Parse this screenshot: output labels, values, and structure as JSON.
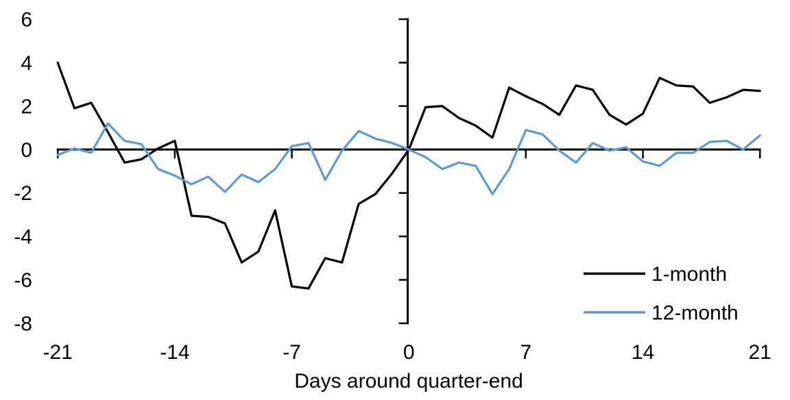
{
  "chart_data": {
    "type": "line",
    "title": "",
    "xlabel": "Days around quarter-end",
    "ylabel": "",
    "xlim": [
      -21,
      21
    ],
    "ylim": [
      -8,
      6
    ],
    "grid": false,
    "legend_position": "bottom-right",
    "x_ticks": [
      -21,
      -14,
      -7,
      0,
      7,
      14,
      21
    ],
    "y_ticks": [
      6,
      4,
      2,
      0,
      -2,
      -4,
      -6,
      -8
    ],
    "x": [
      -21,
      -20,
      -19,
      -18,
      -17,
      -16,
      -15,
      -14,
      -13,
      -12,
      -11,
      -10,
      -9,
      -8,
      -7,
      -6,
      -5,
      -4,
      -3,
      -2,
      -1,
      0,
      1,
      2,
      3,
      4,
      5,
      6,
      7,
      8,
      9,
      10,
      11,
      12,
      13,
      14,
      15,
      16,
      17,
      18,
      19,
      20,
      21
    ],
    "series": [
      {
        "name": "1-month",
        "color": "#000000",
        "values": [
          4.0,
          1.9,
          2.15,
          0.8,
          -0.6,
          -0.45,
          0.05,
          0.4,
          -3.05,
          -3.1,
          -3.4,
          -5.2,
          -4.7,
          -2.8,
          -6.3,
          -6.4,
          -5.0,
          -5.2,
          -2.5,
          -2.05,
          -1.1,
          0.0,
          1.95,
          2.0,
          1.45,
          1.1,
          0.55,
          2.85,
          2.45,
          2.1,
          1.6,
          2.95,
          2.75,
          1.6,
          1.15,
          1.65,
          3.3,
          2.95,
          2.9,
          2.15,
          2.4,
          2.75,
          2.7
        ]
      },
      {
        "name": "12-month",
        "color": "#5B9BD5",
        "values": [
          -0.25,
          0.05,
          -0.15,
          1.2,
          0.4,
          0.25,
          -0.9,
          -1.2,
          -1.6,
          -1.25,
          -1.95,
          -1.15,
          -1.5,
          -0.9,
          0.15,
          0.3,
          -1.4,
          -0.05,
          0.85,
          0.5,
          0.3,
          0.0,
          -0.35,
          -0.9,
          -0.6,
          -0.75,
          -2.05,
          -0.9,
          0.9,
          0.7,
          -0.05,
          -0.6,
          0.3,
          -0.05,
          0.1,
          -0.55,
          -0.75,
          -0.15,
          -0.15,
          0.35,
          0.4,
          0.0,
          0.65
        ]
      }
    ]
  }
}
